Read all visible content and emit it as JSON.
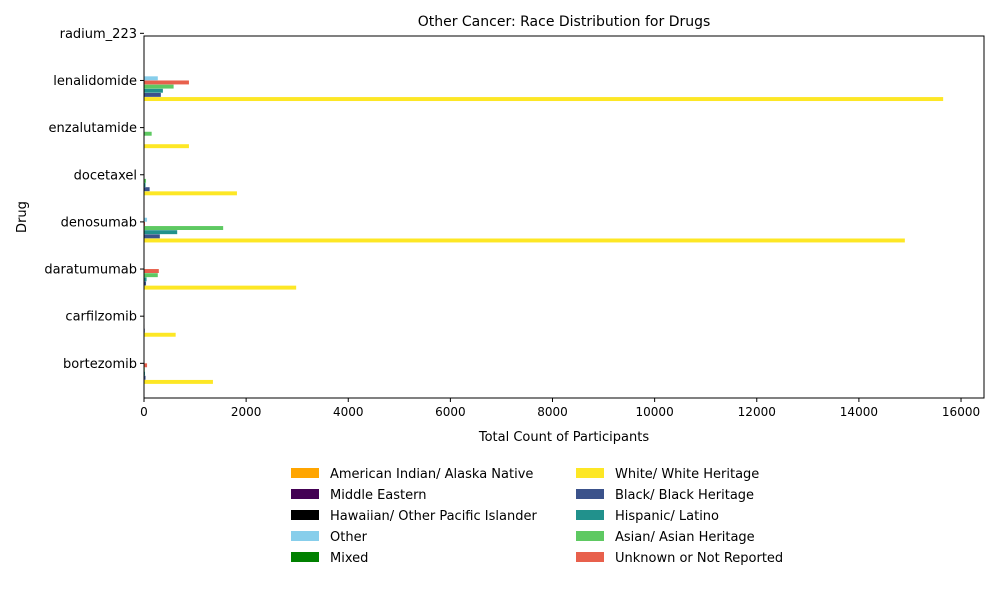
{
  "chart_data": {
    "type": "bar",
    "orientation": "horizontal",
    "title": "Other Cancer: Race Distribution for Drugs",
    "xlabel": "Total Count of Participants",
    "ylabel": "Drug",
    "xlim": [
      0,
      16450
    ],
    "xticks": [
      0,
      2000,
      4000,
      6000,
      8000,
      10000,
      12000,
      14000,
      16000
    ],
    "grid": false,
    "legend_position": "bottom-center",
    "categories": [
      "bortezomib",
      "carfilzomib",
      "daratumumab",
      "denosumab",
      "docetaxel",
      "enzalutamide",
      "lenalidomide",
      "radium_223"
    ],
    "series": [
      {
        "name": "White/ White Heritage",
        "color": "#fde725",
        "values": [
          1350,
          620,
          2980,
          14900,
          1820,
          880,
          15650,
          0
        ]
      },
      {
        "name": "Black/ Black Heritage",
        "color": "#3b528b",
        "values": [
          30,
          15,
          40,
          310,
          110,
          10,
          330,
          0
        ]
      },
      {
        "name": "Hispanic/ Latino",
        "color": "#21918c",
        "values": [
          20,
          10,
          50,
          650,
          30,
          5,
          370,
          0
        ]
      },
      {
        "name": "Asian/ Asian Heritage",
        "color": "#5ec962",
        "values": [
          15,
          5,
          270,
          1550,
          40,
          150,
          580,
          0
        ]
      },
      {
        "name": "Unknown or Not Reported",
        "color": "#e8604c",
        "values": [
          60,
          10,
          290,
          20,
          10,
          5,
          880,
          0
        ]
      },
      {
        "name": "Other",
        "color": "#87ceeb",
        "values": [
          5,
          5,
          10,
          60,
          5,
          5,
          270,
          0
        ]
      },
      {
        "name": "Mixed",
        "color": "#008000",
        "values": [
          0,
          0,
          5,
          10,
          0,
          0,
          10,
          0
        ]
      },
      {
        "name": "Hawaiian/ Other Pacific Islander",
        "color": "#000000",
        "values": [
          0,
          0,
          0,
          5,
          0,
          0,
          5,
          0
        ]
      },
      {
        "name": "Middle Eastern",
        "color": "#440154",
        "values": [
          0,
          0,
          0,
          5,
          0,
          0,
          5,
          0
        ]
      },
      {
        "name": "American Indian/ Alaska Native",
        "color": "#ffa500",
        "values": [
          0,
          0,
          5,
          10,
          0,
          0,
          10,
          0
        ]
      }
    ],
    "legend_order": [
      "American Indian/ Alaska Native",
      "Middle Eastern",
      "Hawaiian/ Other Pacific Islander",
      "Other",
      "Mixed",
      "White/ White Heritage",
      "Black/ Black Heritage",
      "Hispanic/ Latino",
      "Asian/ Asian Heritage",
      "Unknown or Not Reported"
    ]
  }
}
